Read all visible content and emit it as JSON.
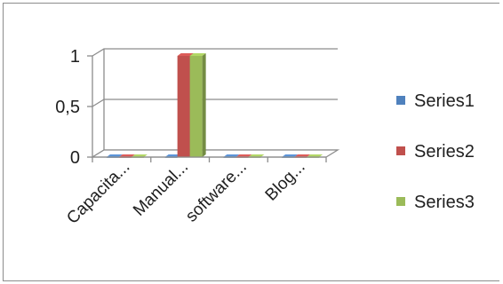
{
  "chart_data": {
    "type": "bar",
    "style": "3d-clustered-column",
    "categories": [
      "Capacita...",
      "Manual...",
      "software...",
      "Blog..."
    ],
    "series": [
      {
        "name": "Series1",
        "color": "#4f81bd",
        "values": [
          0,
          0,
          0,
          0
        ]
      },
      {
        "name": "Series2",
        "color": "#c0504d",
        "values": [
          0,
          1,
          0,
          0
        ]
      },
      {
        "name": "Series3",
        "color": "#9bbb59",
        "values": [
          0,
          1,
          0,
          0
        ]
      }
    ],
    "yticks": [
      "0",
      "0,5",
      "1"
    ],
    "ylim": [
      0,
      1
    ],
    "grid": true,
    "legend_position": "right"
  }
}
